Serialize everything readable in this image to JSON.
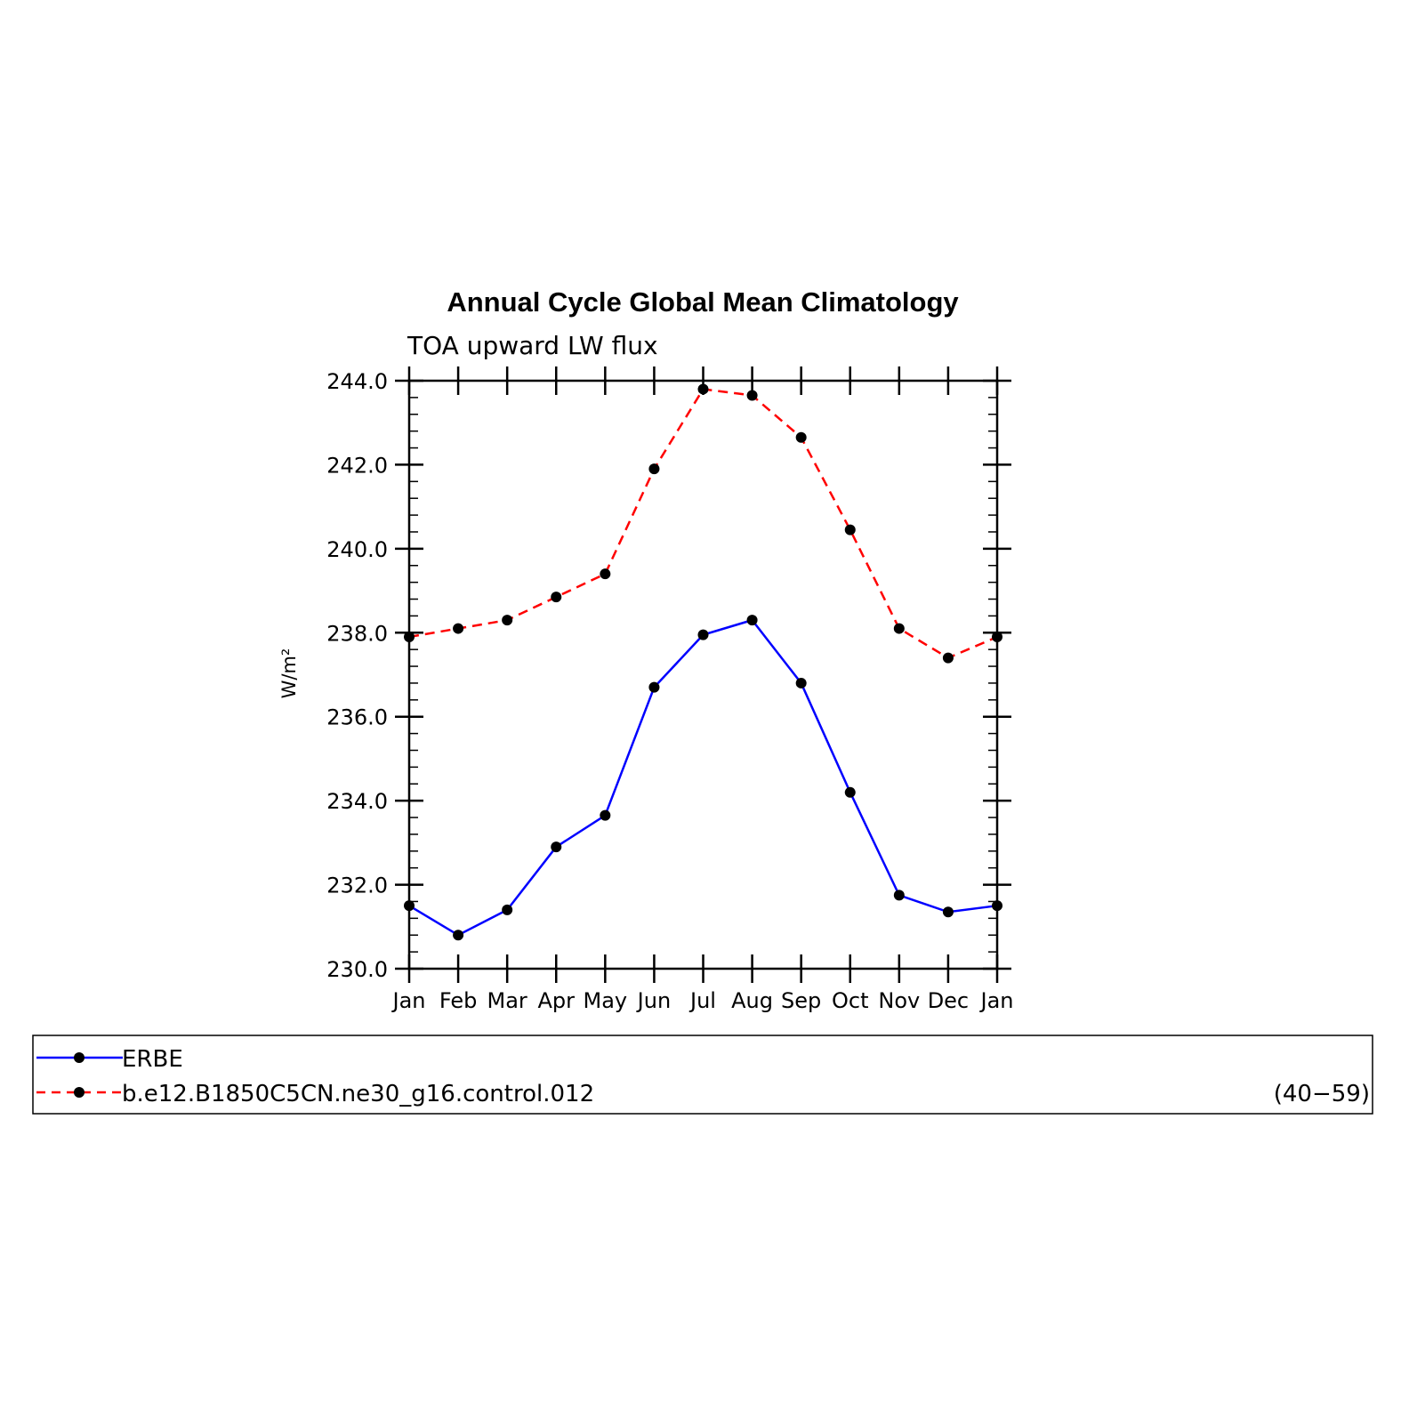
{
  "chart_data": {
    "type": "line",
    "title": "Annual Cycle Global Mean Climatology",
    "subtitle": "TOA upward LW flux",
    "ylabel": "W/m²",
    "xlabel": "",
    "categories": [
      "Jan",
      "Feb",
      "Mar",
      "Apr",
      "May",
      "Jun",
      "Jul",
      "Aug",
      "Sep",
      "Oct",
      "Nov",
      "Dec",
      "Jan"
    ],
    "ylim": [
      230.0,
      244.0
    ],
    "yticks": [
      230.0,
      232.0,
      234.0,
      236.0,
      238.0,
      240.0,
      242.0,
      244.0
    ],
    "ytick_labels": [
      "230.0",
      "232.0",
      "234.0",
      "236.0",
      "238.0",
      "240.0",
      "242.0",
      "244.0"
    ],
    "grid": false,
    "legend_position": "bottom",
    "series": [
      {
        "name": "ERBE",
        "style": "solid",
        "color": "#0000ff",
        "values": [
          231.5,
          230.8,
          231.4,
          232.9,
          233.65,
          236.7,
          237.95,
          238.3,
          236.8,
          234.2,
          231.75,
          231.35,
          231.5
        ]
      },
      {
        "name": "b.e12.B1850C5CN.ne30_g16.control.012",
        "style": "dashed",
        "color": "#ff0000",
        "values": [
          237.9,
          238.1,
          238.3,
          238.85,
          239.4,
          241.9,
          243.8,
          243.65,
          242.65,
          240.45,
          238.1,
          237.4,
          237.9
        ]
      }
    ],
    "legend_note": "(40−59)"
  }
}
